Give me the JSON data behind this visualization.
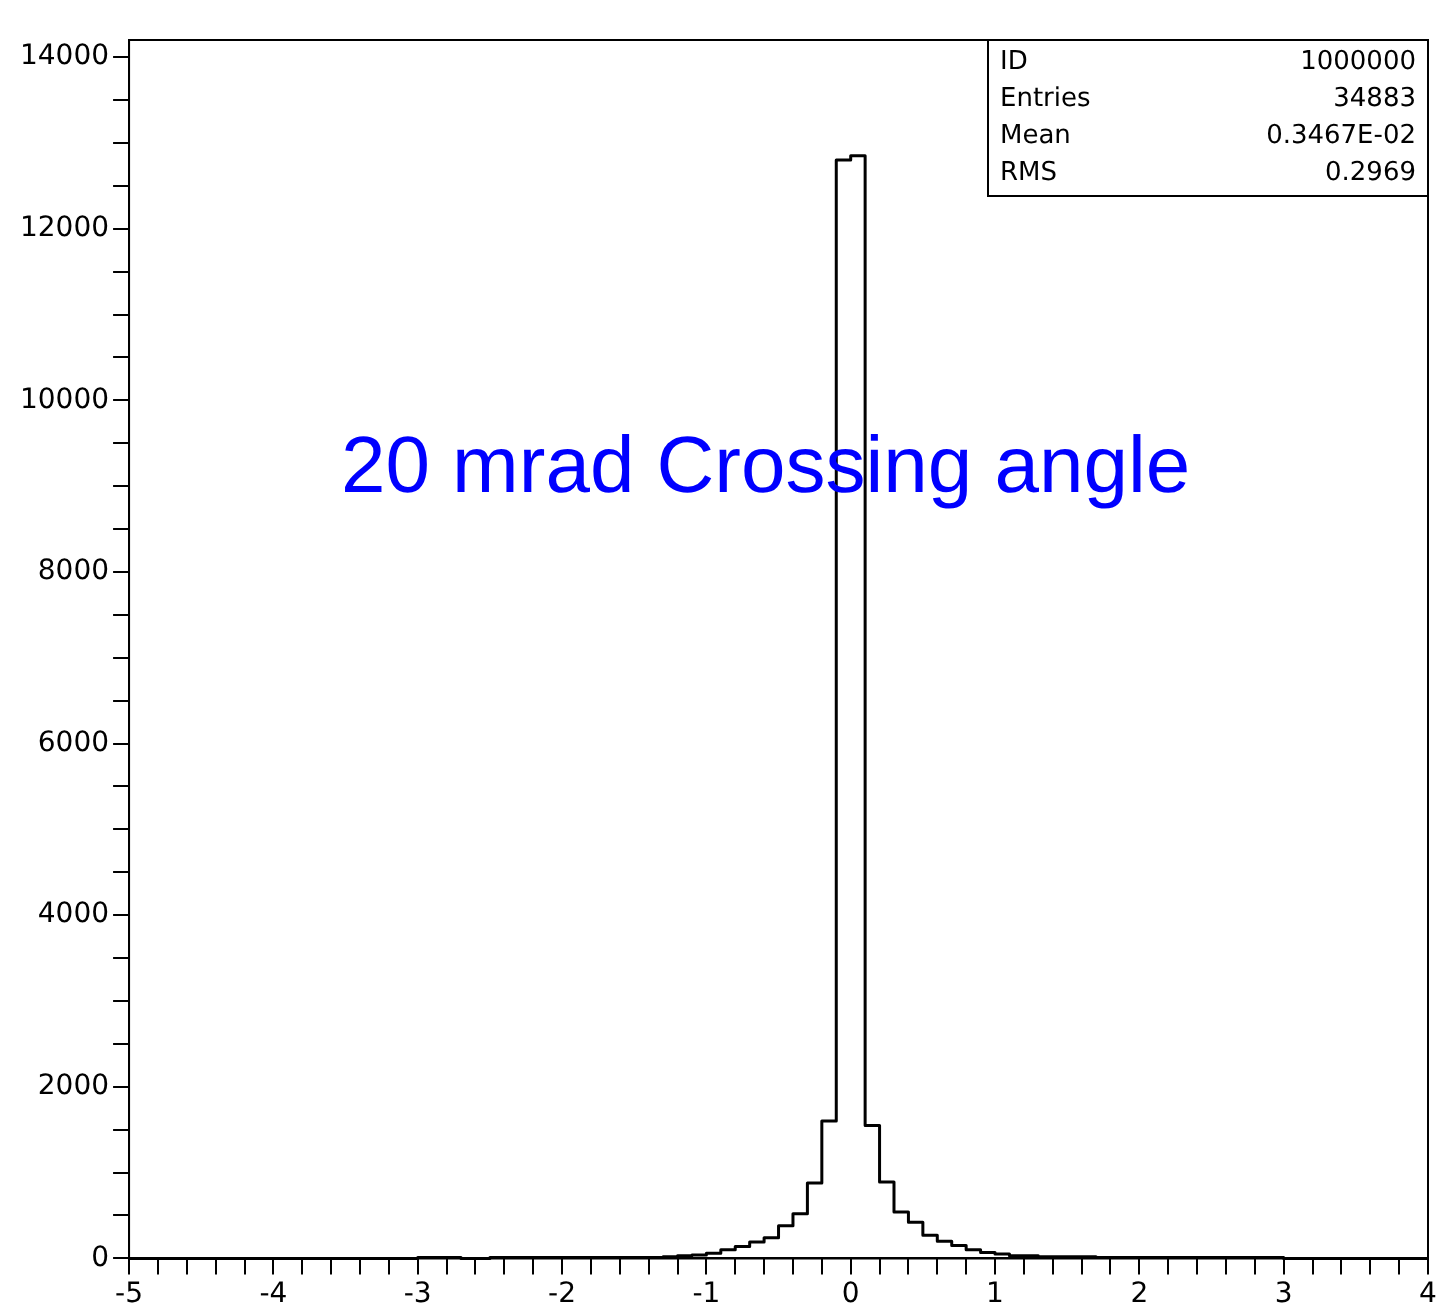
{
  "chart_data": {
    "type": "histogram",
    "bins": [
      -5,
      -4.9,
      -4.8,
      -4.7,
      -4.6,
      -4.5,
      -4.4,
      -4.3,
      -4.2,
      -4.1,
      -4,
      -3.9,
      -3.8,
      -3.7,
      -3.6,
      -3.5,
      -3.4,
      -3.3,
      -3.2,
      -3.1,
      -3,
      -2.9,
      -2.8,
      -2.7,
      -2.6,
      -2.5,
      -2.4,
      -2.3,
      -2.2,
      -2.1,
      -2,
      -1.9,
      -1.8,
      -1.7,
      -1.6,
      -1.5,
      -1.4,
      -1.3,
      -1.2,
      -1.1,
      -1,
      -0.9,
      -0.8,
      -0.7,
      -0.6,
      -0.5,
      -0.4,
      -0.3,
      -0.2,
      -0.1,
      0,
      0.1,
      0.2,
      0.3,
      0.4,
      0.5,
      0.6,
      0.7,
      0.8,
      0.9,
      1,
      1.1,
      1.2,
      1.3,
      1.4,
      1.5,
      1.6,
      1.7,
      1.8,
      1.9,
      2,
      2.1,
      2.2,
      2.3,
      2.4,
      2.5,
      2.6,
      2.7,
      2.8,
      2.9,
      3,
      3.1,
      3.2,
      3.3,
      3.4,
      3.5,
      3.6,
      3.7,
      3.8,
      3.9,
      4
    ],
    "values": [
      0,
      0,
      0,
      0,
      0,
      0,
      0,
      0,
      0,
      0,
      0,
      0,
      0,
      0,
      0,
      0,
      0,
      0,
      0,
      0,
      10,
      10,
      10,
      0,
      0,
      10,
      10,
      10,
      10,
      10,
      10,
      10,
      10,
      10,
      10,
      10,
      10,
      20,
      30,
      40,
      60,
      100,
      140,
      190,
      240,
      380,
      520,
      880,
      1600,
      12800,
      12850,
      1550,
      890,
      540,
      420,
      270,
      200,
      150,
      100,
      70,
      50,
      30,
      30,
      20,
      20,
      20,
      20,
      10,
      10,
      10,
      10,
      10,
      10,
      10,
      10,
      10,
      10,
      10,
      10,
      10,
      0,
      0,
      0,
      0,
      0,
      0,
      0,
      0,
      0,
      0
    ],
    "color": "#000000",
    "xlim": [
      -5,
      4
    ],
    "xticks": [
      -5,
      {
        "value": -4.8,
        "label": null
      },
      {
        "value": -4.6,
        "label": null
      },
      {
        "value": -4.4,
        "label": null
      },
      {
        "value": -4.2,
        "label": null
      },
      -4,
      {
        "value": -3.8,
        "label": null
      },
      {
        "value": -3.6,
        "label": null
      },
      {
        "value": -3.4,
        "label": null
      },
      {
        "value": -3.2,
        "label": null
      },
      -3,
      {
        "value": -2.8,
        "label": null
      },
      {
        "value": -2.6,
        "label": null
      },
      {
        "value": -2.4,
        "label": null
      },
      {
        "value": -2.2,
        "label": null
      },
      -2,
      {
        "value": -1.8,
        "label": null
      },
      {
        "value": -1.6,
        "label": null
      },
      {
        "value": -1.4,
        "label": null
      },
      {
        "value": -1.2,
        "label": null
      },
      -1,
      {
        "value": -0.8,
        "label": null
      },
      {
        "value": -0.6,
        "label": null
      },
      {
        "value": -0.4,
        "label": null
      },
      {
        "value": -0.2,
        "label": null
      },
      0,
      {
        "value": 0.2,
        "label": null
      },
      {
        "value": 0.4,
        "label": null
      },
      {
        "value": 0.6,
        "label": null
      },
      {
        "value": 0.8,
        "label": null
      },
      1,
      {
        "value": 1.2,
        "label": null
      },
      {
        "value": 1.4,
        "label": null
      },
      {
        "value": 1.6,
        "label": null
      },
      {
        "value": 1.8,
        "label": null
      },
      2,
      {
        "value": 2.2,
        "label": null
      },
      {
        "value": 2.4,
        "label": null
      },
      {
        "value": 2.6,
        "label": null
      },
      {
        "value": 2.8,
        "label": null
      },
      3,
      {
        "value": 3.2,
        "label": null
      },
      {
        "value": 3.4,
        "label": null
      },
      {
        "value": 3.6,
        "label": null
      },
      {
        "value": 3.8,
        "label": null
      },
      4
    ],
    "ylim": [
      0,
      14200
    ],
    "yticks": [
      0,
      {
        "value": 500,
        "label": null
      },
      {
        "value": 1000,
        "label": null
      },
      {
        "value": 1500,
        "label": null
      },
      2000,
      {
        "value": 2500,
        "label": null
      },
      {
        "value": 3000,
        "label": null
      },
      {
        "value": 3500,
        "label": null
      },
      4000,
      {
        "value": 4500,
        "label": null
      },
      {
        "value": 5000,
        "label": null
      },
      {
        "value": 5500,
        "label": null
      },
      6000,
      {
        "value": 6500,
        "label": null
      },
      {
        "value": 7000,
        "label": null
      },
      {
        "value": 7500,
        "label": null
      },
      8000,
      {
        "value": 8500,
        "label": null
      },
      {
        "value": 9000,
        "label": null
      },
      {
        "value": 9500,
        "label": null
      },
      10000,
      {
        "value": 10500,
        "label": null
      },
      {
        "value": 11000,
        "label": null
      },
      {
        "value": 11500,
        "label": null
      },
      12000,
      {
        "value": 12500,
        "label": null
      },
      {
        "value": 13000,
        "label": null
      },
      {
        "value": 13500,
        "label": null
      },
      14000
    ],
    "annotations": [
      "20 mrad Crossing angle",
      "ID",
      "1000000",
      "Entries",
      "34883",
      "Mean",
      "0.3467E-02",
      "RMS",
      "0.2969"
    ]
  }
}
